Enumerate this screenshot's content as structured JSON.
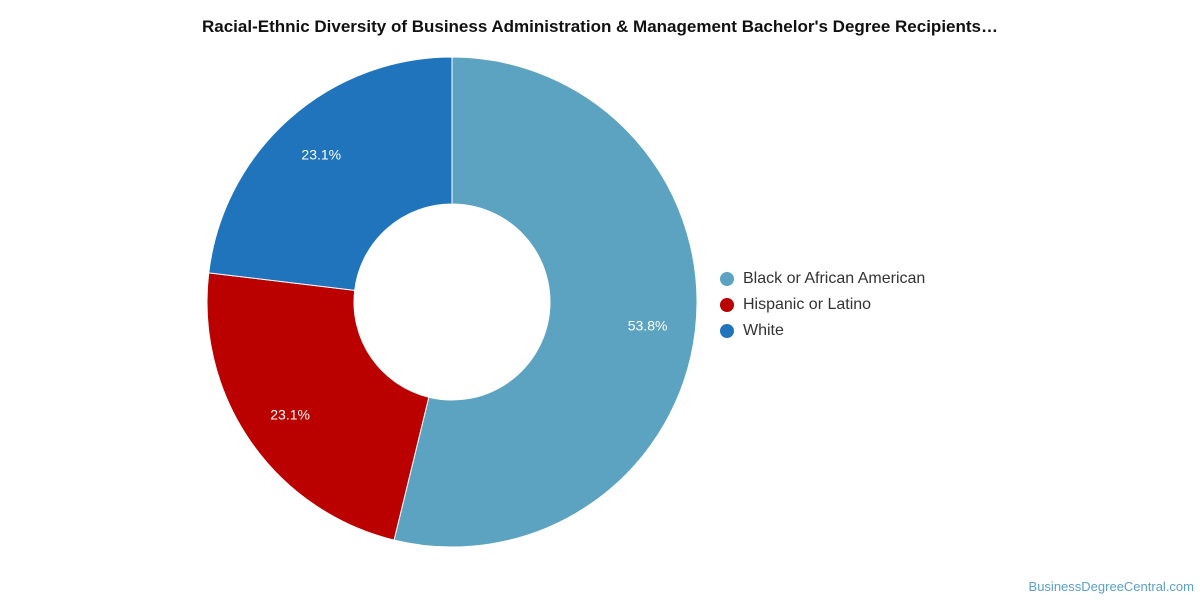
{
  "chart_data": {
    "type": "pie",
    "title": "Racial-Ethnic Diversity of Business Administration & Management Bachelor's Degree Recipients…",
    "donut": true,
    "legend_position": "right",
    "slices": [
      {
        "label": "Black or African American",
        "value": 53.8,
        "display": "53.8%",
        "color": "#5ba3c0"
      },
      {
        "label": "Hispanic or Latino",
        "value": 23.1,
        "display": "23.1%",
        "color": "#bb0000"
      },
      {
        "label": "White",
        "value": 23.1,
        "display": "23.1%",
        "color": "#1f74bb"
      }
    ]
  },
  "credit": "BusinessDegreeCentral.com"
}
